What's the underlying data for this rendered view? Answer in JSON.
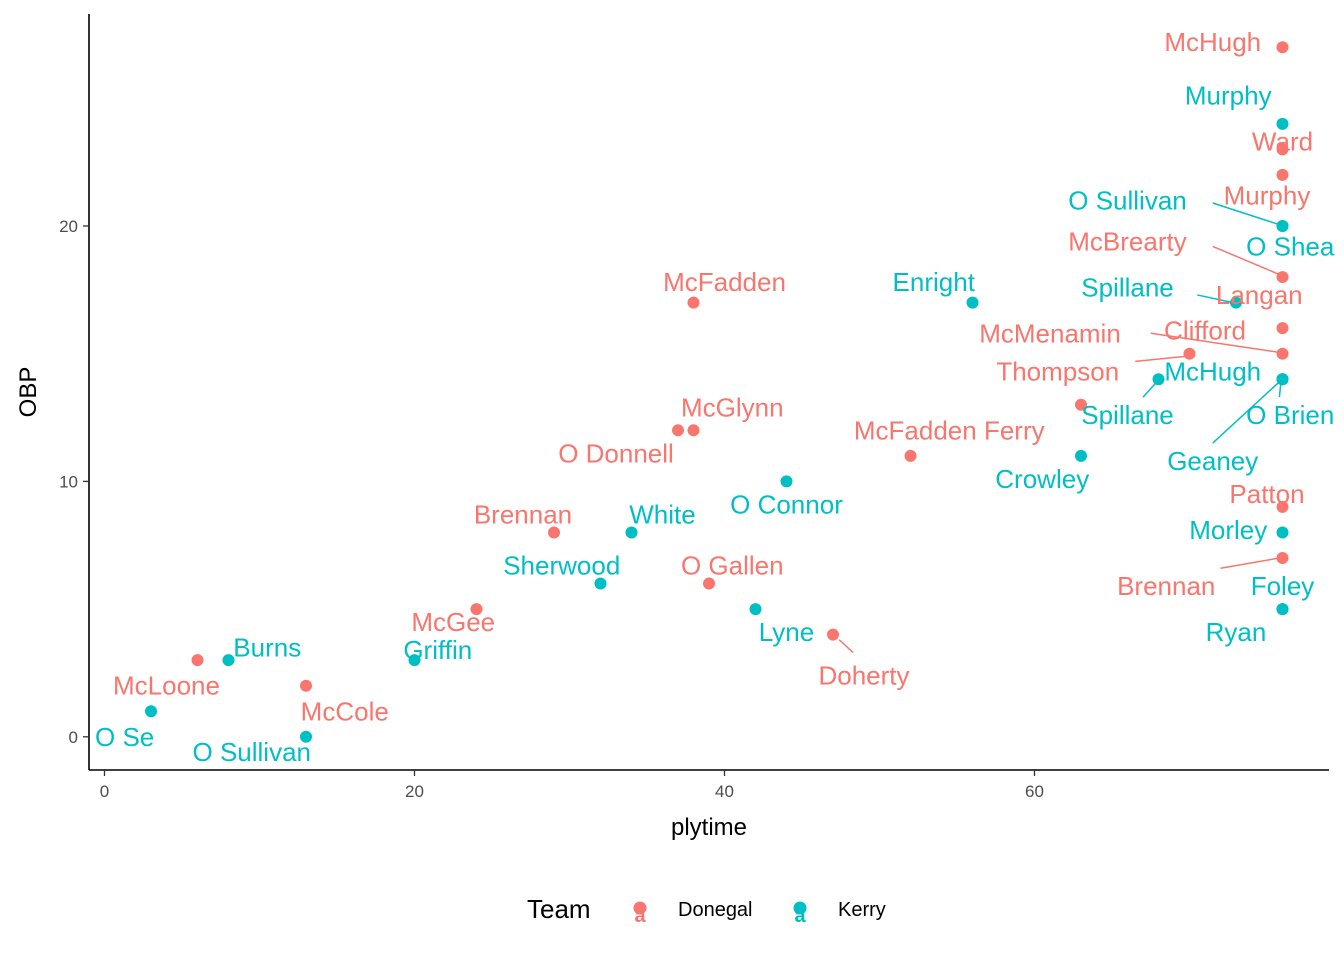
{
  "chart_data": {
    "type": "scatter",
    "title": "",
    "xlabel": "plytime",
    "ylabel": "OBP",
    "xlim": [
      -1,
      79
    ],
    "ylim": [
      -1.3,
      28.3
    ],
    "x_ticks": [
      0,
      20,
      40,
      60
    ],
    "y_ticks": [
      0,
      10,
      20
    ],
    "x_tick_labels": [
      "0",
      "20",
      "40",
      "60"
    ],
    "y_tick_labels": [
      "0",
      "10",
      "20"
    ],
    "grid": false,
    "legend": {
      "title": "Team",
      "placement": "bottom",
      "key_glyph": "a",
      "entries": [
        {
          "name": "Donegal",
          "color": "#F8766D"
        },
        {
          "name": "Kerry",
          "color": "#00BFC4"
        }
      ]
    },
    "series": [
      {
        "name": "Donegal",
        "color": "#F8766D",
        "points": [
          {
            "x": 6,
            "y": 3,
            "label": "McLoone",
            "lx": 4,
            "ly": 2
          },
          {
            "x": 13,
            "y": 2,
            "label": "McCole",
            "lx": 15.5,
            "ly": 1
          },
          {
            "x": 24,
            "y": 5,
            "label": "McGee",
            "lx": 22.5,
            "ly": 4.5
          },
          {
            "x": 29,
            "y": 8,
            "label": "Brennan",
            "lx": 27,
            "ly": 8.7
          },
          {
            "x": 37,
            "y": 12,
            "label": "O Donnell",
            "lx": 33,
            "ly": 11.1
          },
          {
            "x": 38,
            "y": 12,
            "label": "McGlynn",
            "lx": 40.5,
            "ly": 12.9
          },
          {
            "x": 38,
            "y": 17,
            "label": "McFadden",
            "lx": 40,
            "ly": 17.8
          },
          {
            "x": 39,
            "y": 6,
            "label": "O Gallen",
            "lx": 40.5,
            "ly": 6.7
          },
          {
            "x": 47,
            "y": 4,
            "label": "Doherty",
            "lx": 49,
            "ly": 2.4,
            "leader": [
              48.3,
              3.3,
              47.4,
              3.8
            ]
          },
          {
            "x": 52,
            "y": 11,
            "label": "McFadden Ferry",
            "lx": 54.5,
            "ly": 12
          },
          {
            "x": 63,
            "y": 13,
            "label": "Thompson",
            "lx": 61.5,
            "ly": 14.3
          },
          {
            "x": 70,
            "y": 15,
            "label": "Clifford",
            "lx": 71,
            "ly": 15.9,
            "leader": [
              66.5,
              14.7,
              69.8,
              14.9
            ]
          },
          {
            "x": 76,
            "y": 27,
            "label": "McHugh",
            "lx": 71.5,
            "ly": 27.2
          },
          {
            "x": 76,
            "y": 23,
            "label": "Ward",
            "lx": 76,
            "ly": 23.3
          },
          {
            "x": 76,
            "y": 22,
            "label": "Murphy",
            "lx": 75,
            "ly": 21.2
          },
          {
            "x": 76,
            "y": 18,
            "label": "McBrearty",
            "lx": 66,
            "ly": 19.4,
            "leader": [
              71.5,
              19.2,
              75.8,
              18.1
            ]
          },
          {
            "x": 76,
            "y": 16,
            "label": "Langan",
            "lx": 74.5,
            "ly": 17.3
          },
          {
            "x": 76,
            "y": 15,
            "label": "McMenamin",
            "lx": 61,
            "ly": 15.8,
            "leader": [
              67.5,
              15.8,
              75.8,
              15.05
            ]
          },
          {
            "x": 76,
            "y": 9,
            "label": "Patton",
            "lx": 75,
            "ly": 9.5
          },
          {
            "x": 76,
            "y": 7,
            "label": "Brennan",
            "lx": 68.5,
            "ly": 5.9,
            "leader": [
              72,
              6.6,
              75.8,
              7
            ]
          }
        ]
      },
      {
        "name": "Kerry",
        "color": "#00BFC4",
        "points": [
          {
            "x": 3,
            "y": 1,
            "label": "O Se",
            "lx": 1.3,
            "ly": 0
          },
          {
            "x": 8,
            "y": 3,
            "label": "Burns",
            "lx": 10.5,
            "ly": 3.5
          },
          {
            "x": 13,
            "y": 0,
            "label": "O Sullivan",
            "lx": 9.5,
            "ly": -0.6
          },
          {
            "x": 20,
            "y": 3,
            "label": "Griffin",
            "lx": 21.5,
            "ly": 3.4
          },
          {
            "x": 32,
            "y": 6,
            "label": "Sherwood",
            "lx": 29.5,
            "ly": 6.7
          },
          {
            "x": 34,
            "y": 8,
            "label": "White",
            "lx": 36,
            "ly": 8.7
          },
          {
            "x": 42,
            "y": 5,
            "label": "Lyne",
            "lx": 44,
            "ly": 4.1
          },
          {
            "x": 44,
            "y": 10,
            "label": "O Connor",
            "lx": 44,
            "ly": 9.1
          },
          {
            "x": 56,
            "y": 17,
            "label": "Enright",
            "lx": 53.5,
            "ly": 17.8
          },
          {
            "x": 63,
            "y": 11,
            "label": "Crowley",
            "lx": 60.5,
            "ly": 10.1
          },
          {
            "x": 68,
            "y": 14,
            "label": "Spillane",
            "lx": 66,
            "ly": 12.6,
            "leader": [
              67,
              13.3,
              67.9,
              13.9
            ]
          },
          {
            "x": 73,
            "y": 17,
            "label": "Spillane",
            "lx": 66,
            "ly": 17.6,
            "leader": [
              70.5,
              17.3,
              72.8,
              17
            ]
          },
          {
            "x": 76,
            "y": 24,
            "label": "Murphy",
            "lx": 72.5,
            "ly": 25.1
          },
          {
            "x": 76,
            "y": 20,
            "label": "O Sullivan",
            "lx": 66,
            "ly": 21
          },
          {
            "x": 76,
            "y": 20,
            "label": "O Shea",
            "lx": 76.5,
            "ly": 19.2,
            "leader": [
              71.5,
              20.9,
              75.8,
              20.05
            ]
          },
          {
            "x": 76,
            "y": 14,
            "label": "McHugh",
            "lx": 71.5,
            "ly": 14.3
          },
          {
            "x": 76,
            "y": 14,
            "label": "O Brien",
            "lx": 76.5,
            "ly": 12.6,
            "leader": [
              75.8,
              13.3,
              75.9,
              13.9
            ]
          },
          {
            "x": 76,
            "y": 14,
            "label": "Geaney",
            "lx": 71.5,
            "ly": 10.8,
            "leader": [
              71.5,
              11.5,
              75.8,
              13.9
            ]
          },
          {
            "x": 76,
            "y": 8,
            "label": "Morley",
            "lx": 72.5,
            "ly": 8.1
          },
          {
            "x": 76,
            "y": 5,
            "label": "Foley",
            "lx": 76,
            "ly": 5.9
          },
          {
            "x": 76,
            "y": 5,
            "label": "Ryan",
            "lx": 73,
            "ly": 4.1
          }
        ]
      }
    ]
  }
}
